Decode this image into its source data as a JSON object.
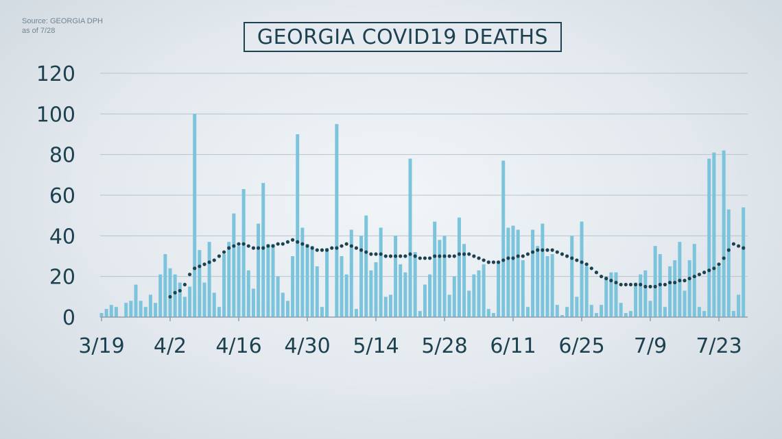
{
  "source": {
    "line1": "Source: GEORGIA DPH",
    "line2": "as of 7/28"
  },
  "colors": {
    "bar": "#7cc4dc",
    "average": "#1e4150",
    "text": "#1e4150",
    "grid": "#b7c3cb"
  },
  "chart_data": {
    "type": "bar",
    "title": "GEORGIA COVID19 DEATHS",
    "ylim": [
      0,
      120
    ],
    "yticks": [
      0,
      20,
      40,
      60,
      80,
      100,
      120
    ],
    "xticks": [
      "3/19",
      "4/2",
      "4/16",
      "4/30",
      "5/14",
      "5/28",
      "6/11",
      "6/25",
      "7/9",
      "7/23"
    ],
    "grid": true,
    "first_date": "3/19",
    "x": [
      "3/19",
      "3/20",
      "3/21",
      "3/22",
      "3/23",
      "3/24",
      "3/25",
      "3/26",
      "3/27",
      "3/28",
      "3/29",
      "3/30",
      "3/31",
      "4/1",
      "4/2",
      "4/3",
      "4/4",
      "4/5",
      "4/6",
      "4/7",
      "4/8",
      "4/9",
      "4/10",
      "4/11",
      "4/12",
      "4/13",
      "4/14",
      "4/15",
      "4/16",
      "4/17",
      "4/18",
      "4/19",
      "4/20",
      "4/21",
      "4/22",
      "4/23",
      "4/24",
      "4/25",
      "4/26",
      "4/27",
      "4/28",
      "4/29",
      "4/30",
      "5/1",
      "5/2",
      "5/3",
      "5/4",
      "5/5",
      "5/6",
      "5/7",
      "5/8",
      "5/9",
      "5/10",
      "5/11",
      "5/12",
      "5/13",
      "5/14",
      "5/15",
      "5/16",
      "5/17",
      "5/18",
      "5/19",
      "5/20",
      "5/21",
      "5/22",
      "5/23",
      "5/24",
      "5/25",
      "5/26",
      "5/27",
      "5/28",
      "5/29",
      "5/30",
      "5/31",
      "6/1",
      "6/2",
      "6/3",
      "6/4",
      "6/5",
      "6/6",
      "6/7",
      "6/8",
      "6/9",
      "6/10",
      "6/11",
      "6/12",
      "6/13",
      "6/14",
      "6/15",
      "6/16",
      "6/17",
      "6/18",
      "6/19",
      "6/20",
      "6/21",
      "6/22",
      "6/23",
      "6/24",
      "6/25",
      "6/26",
      "6/27",
      "6/28",
      "6/29",
      "6/30",
      "7/1",
      "7/2",
      "7/3",
      "7/4",
      "7/5",
      "7/6",
      "7/7",
      "7/8",
      "7/9",
      "7/10",
      "7/11",
      "7/12",
      "7/13",
      "7/14",
      "7/15",
      "7/16",
      "7/17",
      "7/18",
      "7/19",
      "7/20",
      "7/21",
      "7/22",
      "7/23",
      "7/24",
      "7/25",
      "7/26",
      "7/27",
      "7/28"
    ],
    "series": [
      {
        "type": "bar",
        "values": [
          2,
          4,
          6,
          5,
          0,
          7,
          8,
          16,
          8,
          5,
          11,
          7,
          21,
          31,
          24,
          21,
          17,
          10,
          15,
          100,
          33,
          17,
          37,
          12,
          5,
          31,
          37,
          51,
          35,
          63,
          23,
          14,
          46,
          66,
          36,
          36,
          20,
          12,
          8,
          30,
          90,
          44,
          36,
          35,
          25,
          5,
          34,
          0,
          95,
          30,
          21,
          43,
          4,
          40,
          50,
          23,
          27,
          44,
          10,
          11,
          40,
          26,
          22,
          78,
          32,
          3,
          16,
          21,
          47,
          38,
          40,
          11,
          20,
          49,
          36,
          13,
          21,
          23,
          26,
          4,
          2,
          27,
          77,
          44,
          45,
          43,
          28,
          5,
          43,
          35,
          46,
          30,
          31,
          6,
          1,
          5,
          40,
          10,
          47,
          25,
          6,
          2,
          6,
          20,
          22,
          22,
          7,
          2,
          3,
          17,
          21,
          23,
          8,
          35,
          31,
          5,
          25,
          28,
          37,
          13,
          28,
          36,
          5,
          3,
          78,
          81,
          25,
          82,
          53,
          3,
          11,
          54
        ]
      },
      {
        "type": "line",
        "style": "dotted",
        "values": [
          null,
          null,
          null,
          null,
          null,
          null,
          null,
          null,
          null,
          null,
          null,
          null,
          null,
          null,
          10,
          12,
          13,
          16,
          21,
          24,
          25,
          26,
          27,
          28,
          30,
          32,
          34,
          35,
          36,
          36,
          35,
          34,
          34,
          34,
          35,
          35,
          36,
          36,
          37,
          38,
          37,
          36,
          35,
          34,
          33,
          33,
          33,
          34,
          34,
          35,
          36,
          35,
          34,
          33,
          32,
          31,
          31,
          31,
          30,
          30,
          30,
          30,
          30,
          31,
          30,
          29,
          29,
          29,
          30,
          30,
          30,
          30,
          30,
          31,
          31,
          31,
          30,
          29,
          28,
          27,
          27,
          27,
          28,
          29,
          29,
          30,
          30,
          31,
          32,
          33,
          33,
          33,
          33,
          32,
          31,
          30,
          29,
          28,
          27,
          26,
          24,
          22,
          20,
          19,
          18,
          17,
          16,
          16,
          16,
          16,
          16,
          15,
          15,
          15,
          16,
          16,
          17,
          17,
          18,
          18,
          19,
          20,
          21,
          22,
          23,
          24,
          26,
          29,
          33,
          36,
          35,
          34
        ]
      }
    ]
  }
}
